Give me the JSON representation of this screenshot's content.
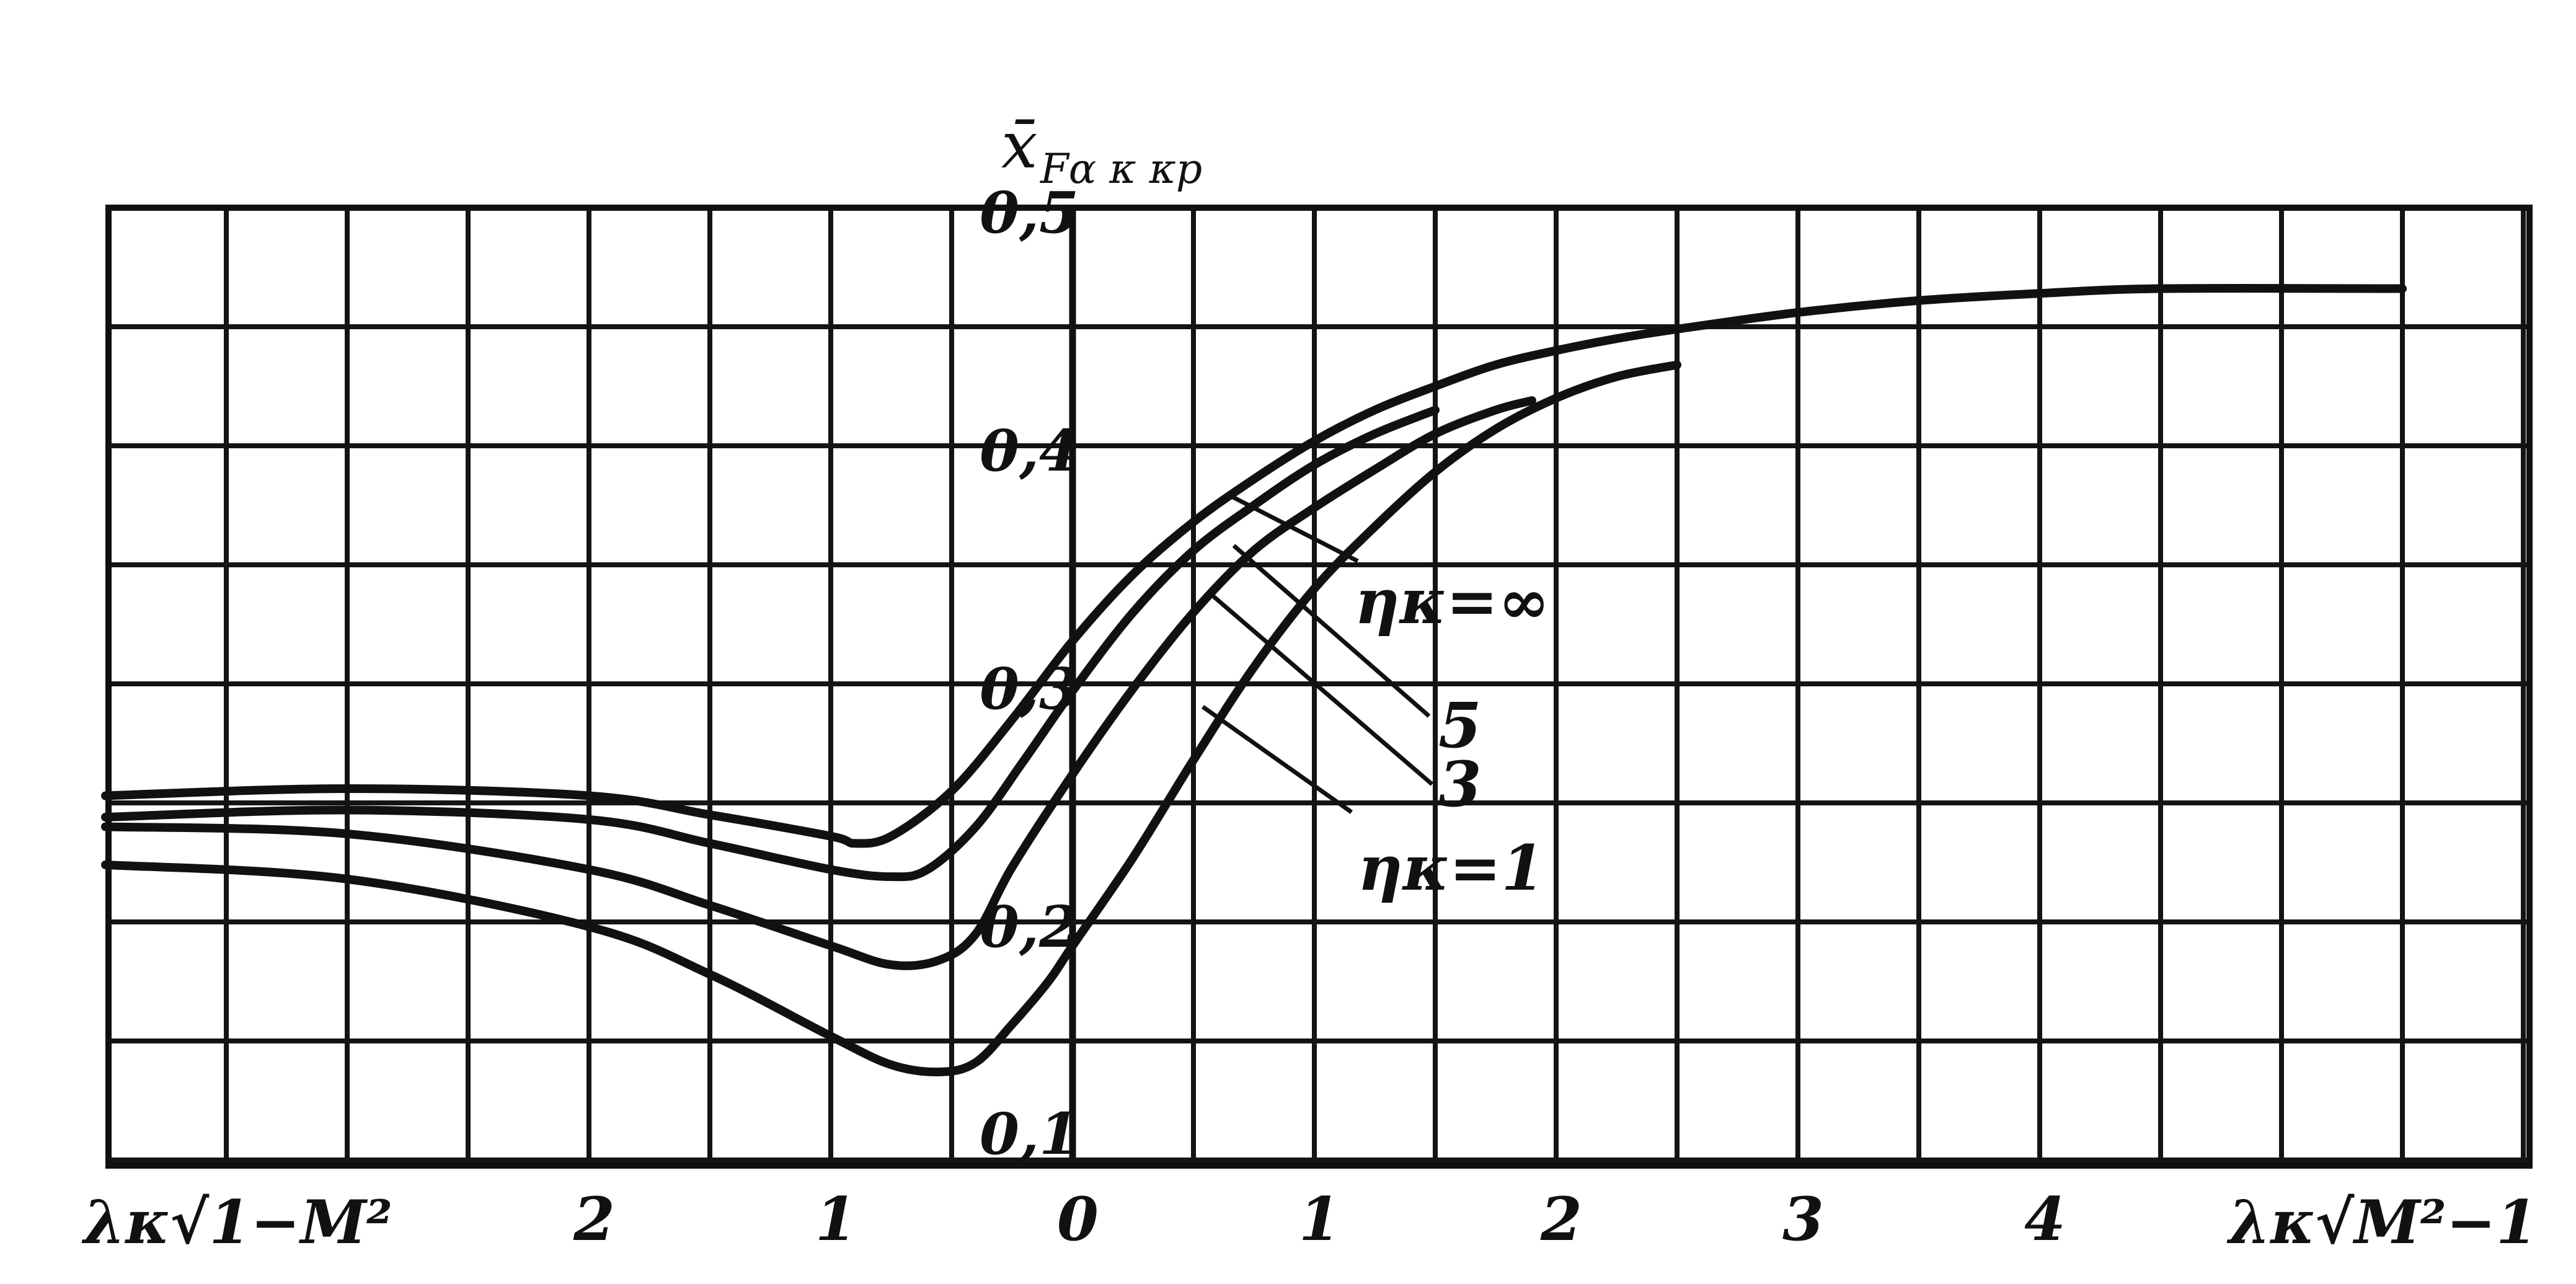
{
  "chart_data": {
    "type": "line",
    "ylabel": {
      "main": "x̄",
      "sub": "Fα κ κp"
    },
    "x_left_label": "λκ√1−M²",
    "x_right_label": "λκ√M²−1",
    "x_ticks": [
      {
        "x": -3,
        "label": ""
      },
      {
        "x": -2,
        "label": "2"
      },
      {
        "x": -1,
        "label": "1"
      },
      {
        "x": 0,
        "label": "0"
      },
      {
        "x": 1,
        "label": "1"
      },
      {
        "x": 2,
        "label": "2"
      },
      {
        "x": 3,
        "label": "3"
      },
      {
        "x": 4,
        "label": "4"
      }
    ],
    "y_ticks": [
      {
        "y": 0.1,
        "label": "0,1"
      },
      {
        "y": 0.2,
        "label": "0,2"
      },
      {
        "y": 0.3,
        "label": "0,3"
      },
      {
        "y": 0.4,
        "label": "0,4"
      },
      {
        "y": 0.5,
        "label": "0,5"
      }
    ],
    "xlim": [
      -4,
      6
    ],
    "ylim": [
      0.1,
      0.5
    ],
    "grid": true,
    "series": [
      {
        "name": "ηκ = ∞",
        "x": [
          -4,
          -3,
          -2,
          -1.5,
          -1,
          -0.9,
          -0.75,
          -0.5,
          -0.25,
          0,
          0.25,
          0.5,
          0.75,
          1,
          1.25,
          1.5,
          1.75,
          2,
          2.25,
          2.5,
          3,
          3.5,
          4,
          4.5,
          5.5
        ],
        "y": [
          0.253,
          0.256,
          0.253,
          0.245,
          0.236,
          0.233,
          0.236,
          0.255,
          0.285,
          0.318,
          0.346,
          0.368,
          0.386,
          0.402,
          0.415,
          0.425,
          0.434,
          0.44,
          0.445,
          0.449,
          0.456,
          0.461,
          0.464,
          0.466,
          0.466
        ]
      },
      {
        "name": "5",
        "x": [
          -4,
          -3,
          -2,
          -1.5,
          -1,
          -0.75,
          -0.6,
          -0.4,
          -0.2,
          0,
          0.25,
          0.5,
          0.75,
          1,
          1.25,
          1.5
        ],
        "y": [
          0.244,
          0.247,
          0.243,
          0.233,
          0.222,
          0.219,
          0.222,
          0.24,
          0.268,
          0.297,
          0.33,
          0.356,
          0.375,
          0.392,
          0.405,
          0.415
        ]
      },
      {
        "name": "3",
        "x": [
          -4,
          -3,
          -2,
          -1.5,
          -1,
          -0.75,
          -0.55,
          -0.4,
          -0.25,
          0,
          0.25,
          0.5,
          0.75,
          1,
          1.25,
          1.5,
          1.75,
          1.9
        ],
        "y": [
          0.24,
          0.237,
          0.222,
          0.207,
          0.19,
          0.182,
          0.184,
          0.195,
          0.223,
          0.262,
          0.298,
          0.33,
          0.356,
          0.374,
          0.39,
          0.405,
          0.415,
          0.419
        ]
      },
      {
        "name": "ηκ = 1",
        "x": [
          -4,
          -3,
          -2,
          -1.5,
          -1,
          -0.75,
          -0.55,
          -0.4,
          -0.25,
          -0.1,
          0,
          0.25,
          0.5,
          0.75,
          1,
          1.25,
          1.5,
          1.75,
          2,
          2.25,
          2.5
        ],
        "y": [
          0.224,
          0.218,
          0.198,
          0.178,
          0.152,
          0.14,
          0.137,
          0.141,
          0.157,
          0.175,
          0.19,
          0.227,
          0.268,
          0.307,
          0.34,
          0.366,
          0.389,
          0.407,
          0.42,
          0.429,
          0.434
        ]
      }
    ],
    "annotations": [
      {
        "text": "ηκ=∞"
      },
      {
        "text": "5"
      },
      {
        "text": "3"
      },
      {
        "text": "ηκ=1"
      }
    ]
  }
}
